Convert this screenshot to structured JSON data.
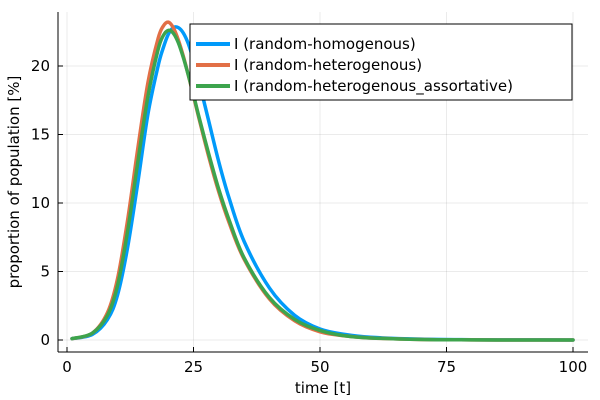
{
  "chart_data": {
    "type": "line",
    "xlabel": "time [t]",
    "ylabel": "proportion of population [%]",
    "xlim": [
      0,
      100
    ],
    "ylim": [
      0,
      24
    ],
    "xticks": [
      0,
      25,
      50,
      75,
      100
    ],
    "yticks": [
      0,
      5,
      10,
      15,
      20
    ],
    "grid": true,
    "legend_position": "top-right",
    "series": [
      {
        "name": "I (random-homogenous)",
        "color": "#009AFA",
        "x": [
          1,
          5,
          8,
          10,
          12,
          14,
          16,
          18,
          19,
          20,
          21,
          22,
          23,
          24,
          25,
          26,
          28,
          30,
          32,
          35,
          40,
          45,
          50,
          55,
          60,
          70,
          80,
          90,
          100
        ],
        "y": [
          0.1,
          0.4,
          1.5,
          3.3,
          6.8,
          11.5,
          16.5,
          20.0,
          21.3,
          22.3,
          22.8,
          22.8,
          22.4,
          21.6,
          20.4,
          19.0,
          16.0,
          13.0,
          10.4,
          7.2,
          3.8,
          1.8,
          0.8,
          0.4,
          0.2,
          0.06,
          0.02,
          0.01,
          0.0
        ]
      },
      {
        "name": "I (random-heterogenous)",
        "color": "#E26F46",
        "x": [
          1,
          5,
          8,
          10,
          12,
          14,
          16,
          18,
          19,
          20,
          21,
          22,
          23,
          24,
          25,
          26,
          28,
          30,
          32,
          35,
          40,
          45,
          50,
          55,
          60,
          70,
          80,
          90,
          100
        ],
        "y": [
          0.1,
          0.5,
          2.0,
          4.5,
          8.8,
          14.0,
          18.8,
          22.0,
          22.9,
          23.2,
          22.8,
          21.9,
          20.7,
          19.3,
          17.8,
          16.3,
          13.4,
          10.8,
          8.6,
          5.9,
          3.0,
          1.4,
          0.6,
          0.3,
          0.15,
          0.04,
          0.01,
          0.0,
          0.0
        ]
      },
      {
        "name": "I (random-heterogenous_assortative)",
        "color": "#3DA44D",
        "x": [
          1,
          5,
          8,
          10,
          12,
          14,
          16,
          18,
          19,
          20,
          21,
          22,
          23,
          24,
          25,
          26,
          28,
          30,
          32,
          35,
          40,
          45,
          50,
          55,
          60,
          70,
          80,
          90,
          100
        ],
        "y": [
          0.1,
          0.5,
          1.8,
          4.0,
          8.0,
          13.0,
          17.8,
          21.2,
          22.2,
          22.6,
          22.4,
          21.7,
          20.6,
          19.3,
          17.9,
          16.4,
          13.6,
          11.0,
          8.8,
          6.0,
          3.1,
          1.5,
          0.7,
          0.3,
          0.15,
          0.04,
          0.01,
          0.0,
          0.0
        ]
      }
    ]
  }
}
